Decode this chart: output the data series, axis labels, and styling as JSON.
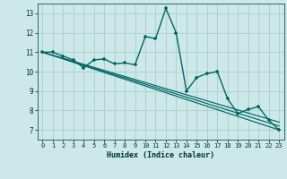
{
  "xlabel": "Humidex (Indice chaleur)",
  "bg_color": "#cce8e8",
  "grid_color": "#b0d0d0",
  "line_color": "#006666",
  "xlim": [
    -0.5,
    23.5
  ],
  "ylim": [
    6.5,
    13.5
  ],
  "xticks": [
    0,
    1,
    2,
    3,
    4,
    5,
    6,
    7,
    8,
    9,
    10,
    11,
    12,
    13,
    14,
    15,
    16,
    17,
    18,
    19,
    20,
    21,
    22,
    23
  ],
  "yticks": [
    7,
    8,
    9,
    10,
    11,
    12,
    13
  ],
  "main_x": [
    0,
    1,
    2,
    3,
    4,
    5,
    6,
    7,
    8,
    9,
    10,
    11,
    12,
    13,
    14,
    15,
    16,
    17,
    18,
    19,
    20,
    21,
    22,
    23
  ],
  "main_y": [
    11.0,
    11.0,
    10.8,
    10.6,
    10.2,
    10.6,
    10.65,
    10.4,
    10.45,
    10.35,
    11.8,
    11.7,
    13.25,
    12.0,
    9.0,
    9.7,
    9.9,
    10.0,
    8.6,
    7.85,
    8.05,
    8.2,
    7.5,
    7.0
  ],
  "reg_lines": [
    [
      11.0,
      7.0
    ],
    [
      11.0,
      7.2
    ],
    [
      11.0,
      7.4
    ]
  ]
}
